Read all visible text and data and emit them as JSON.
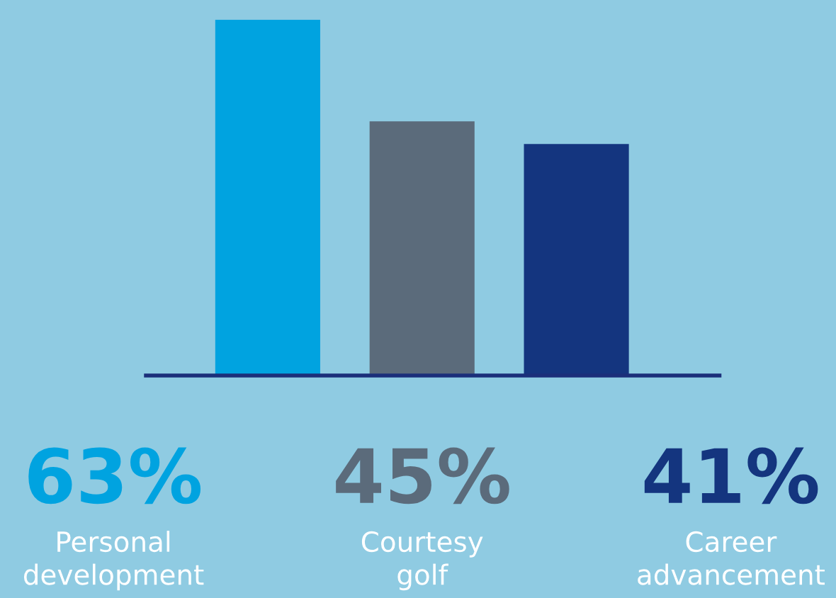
{
  "chart_data": {
    "type": "bar",
    "categories": [
      "Personal\ndevelopment",
      "Courtesy\ngolf",
      "Career\nadvancement"
    ],
    "values": [
      63,
      45,
      41
    ],
    "colors": [
      "#00a3e0",
      "#5b6b7b",
      "#14357f"
    ],
    "value_labels": [
      "63%",
      "45%",
      "41%"
    ]
  }
}
